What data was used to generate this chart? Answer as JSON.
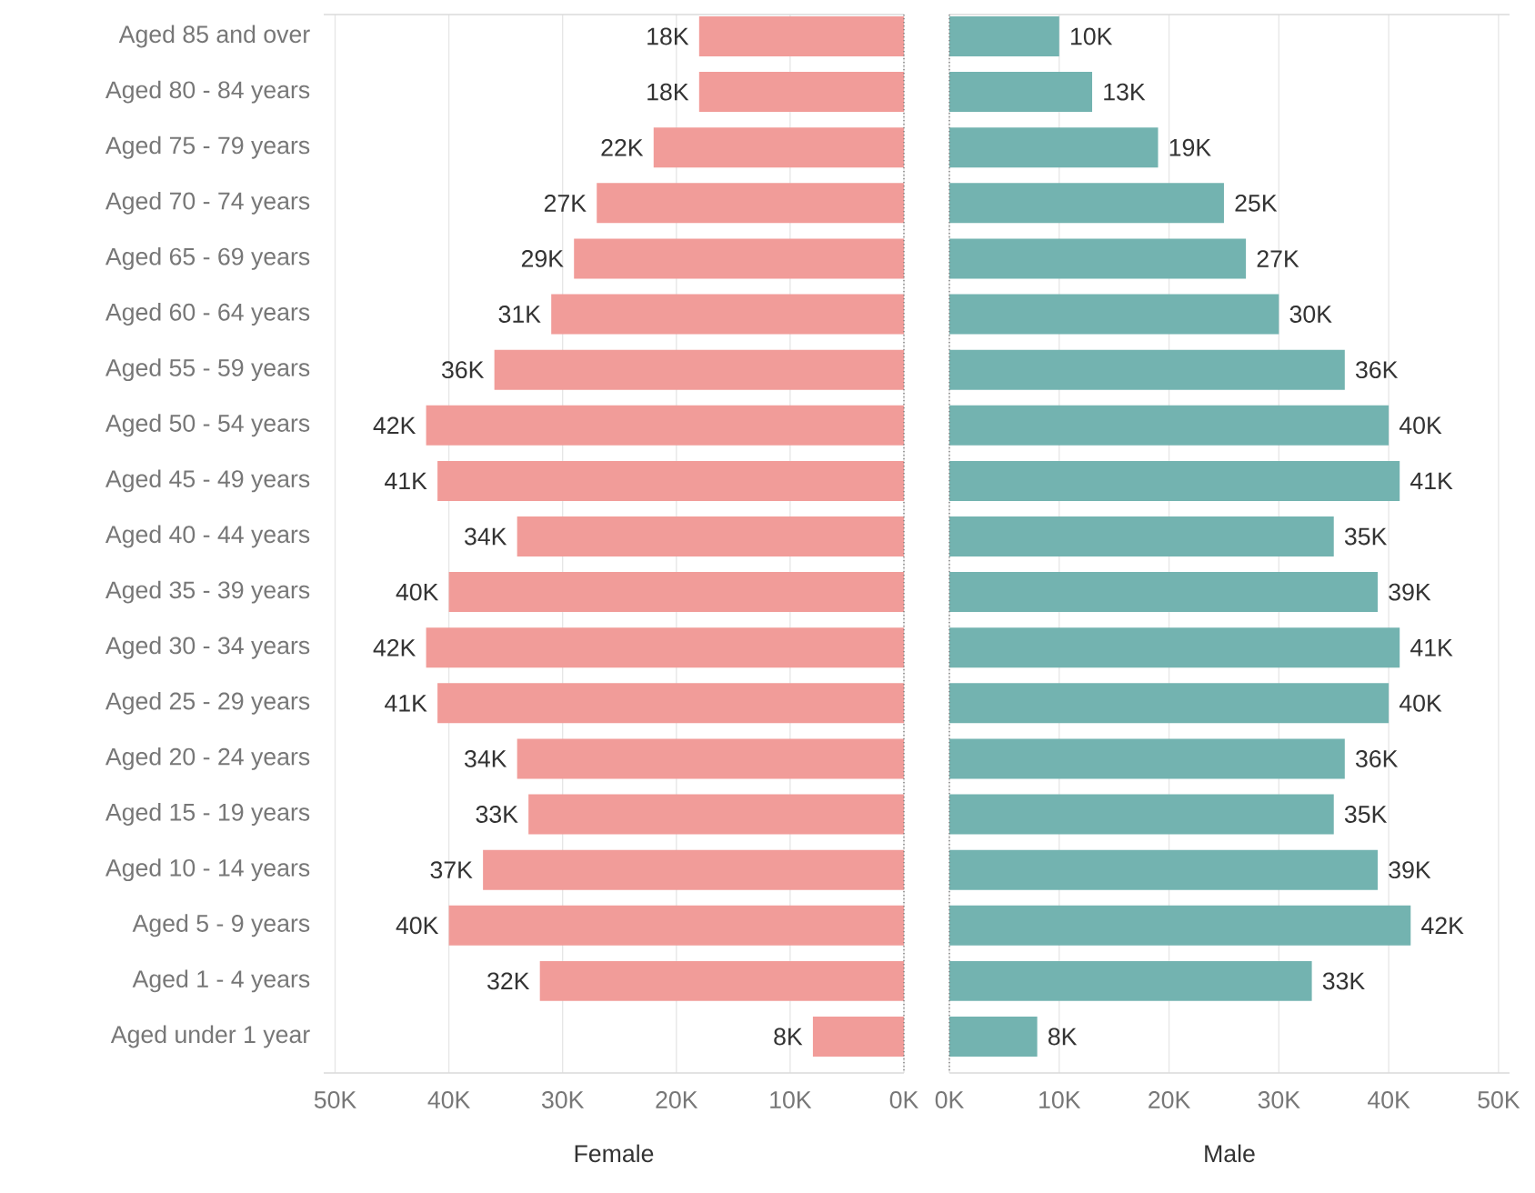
{
  "chart_data": [
    {
      "type": "bar",
      "orientation": "horizontal",
      "xlabel": "Female",
      "color": "#f19c99",
      "grid": "x",
      "categories": [
        "Aged 85 and over",
        "Aged 80 - 84 years",
        "Aged 75 - 79 years",
        "Aged 70 - 74 years",
        "Aged 65 - 69 years",
        "Aged 60 - 64 years",
        "Aged 55 - 59 years",
        "Aged 50 - 54 years",
        "Aged 45 - 49 years",
        "Aged 40 - 44 years",
        "Aged 35 - 39 years",
        "Aged 30 - 34 years",
        "Aged 25 - 29 years",
        "Aged 20 - 24 years",
        "Aged 15 - 19 years",
        "Aged 10 - 14 years",
        "Aged 5 - 9 years",
        "Aged 1 - 4 years",
        "Aged under 1 year"
      ],
      "values": [
        18000,
        18000,
        22000,
        27000,
        29000,
        31000,
        36000,
        42000,
        41000,
        34000,
        40000,
        42000,
        41000,
        34000,
        33000,
        37000,
        40000,
        32000,
        8000
      ],
      "value_labels": [
        "18K",
        "18K",
        "22K",
        "27K",
        "29K",
        "31K",
        "36K",
        "42K",
        "41K",
        "34K",
        "40K",
        "42K",
        "41K",
        "34K",
        "33K",
        "37K",
        "40K",
        "32K",
        "8K"
      ],
      "xlim": [
        51000,
        0
      ],
      "xticks": [
        {
          "value": 50000,
          "label": "50K"
        },
        {
          "value": 40000,
          "label": "40K"
        },
        {
          "value": 30000,
          "label": "30K"
        },
        {
          "value": 20000,
          "label": "20K"
        },
        {
          "value": 10000,
          "label": "10K"
        },
        {
          "value": 0,
          "label": "0K"
        }
      ]
    },
    {
      "type": "bar",
      "orientation": "horizontal",
      "xlabel": "Male",
      "color": "#73b3b0",
      "grid": "x",
      "tick_labels": "x",
      "values": [
        10000,
        13000,
        19000,
        25000,
        27000,
        30000,
        36000,
        40000,
        41000,
        35000,
        39000,
        41000,
        40000,
        36000,
        35000,
        39000,
        42000,
        33000,
        8000
      ],
      "value_labels": [
        "10K",
        "13K",
        "19K",
        "25K",
        "27K",
        "30K",
        "36K",
        "40K",
        "41K",
        "35K",
        "39K",
        "41K",
        "40K",
        "36K",
        "35K",
        "39K",
        "42K",
        "33K",
        "8K"
      ],
      "xlim": [
        0,
        51000
      ],
      "xticks": [
        {
          "value": 0,
          "label": "0K"
        },
        {
          "value": 10000,
          "label": "10K"
        },
        {
          "value": 20000,
          "label": "20K"
        },
        {
          "value": 30000,
          "label": "30K"
        },
        {
          "value": 40000,
          "label": "40K"
        },
        {
          "value": 50000,
          "label": "50K"
        }
      ]
    }
  ]
}
